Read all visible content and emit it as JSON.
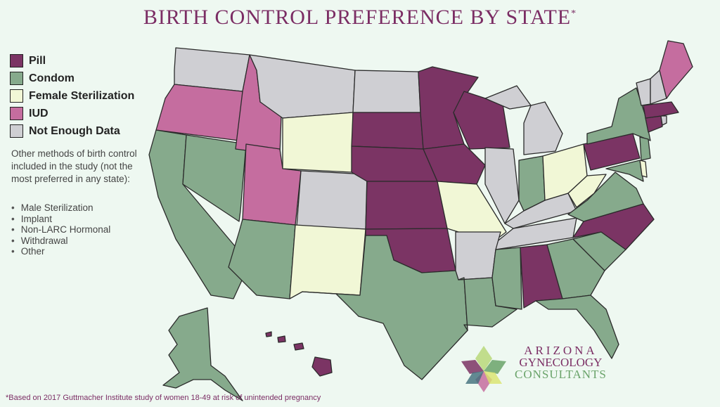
{
  "title": "BIRTH CONTROL PREFERENCE BY STATE",
  "title_mark": "*",
  "legend": [
    {
      "label": "Pill",
      "color": "#7b3464"
    },
    {
      "label": "Condom",
      "color": "#86aa8c"
    },
    {
      "label": "Female Sterilization",
      "color": "#f1f7d6"
    },
    {
      "label": "IUD",
      "color": "#c56d9f"
    },
    {
      "label": "Not Enough Data",
      "color": "#cfcfd3"
    }
  ],
  "other_intro": "Other methods of birth control included in the study (not the most preferred in any state):",
  "other_methods": [
    "Male Sterilization",
    "Implant",
    "Non-LARC Hormonal",
    "Withdrawal",
    "Other"
  ],
  "logo": {
    "line1": "ARIZONA",
    "line2": "GYNECOLOGY",
    "line3": "CONSULTANTS"
  },
  "footnote": "*Based on 2017 Guttmacher Institute study of women 18-49 at risk of unintended pregnancy"
}
